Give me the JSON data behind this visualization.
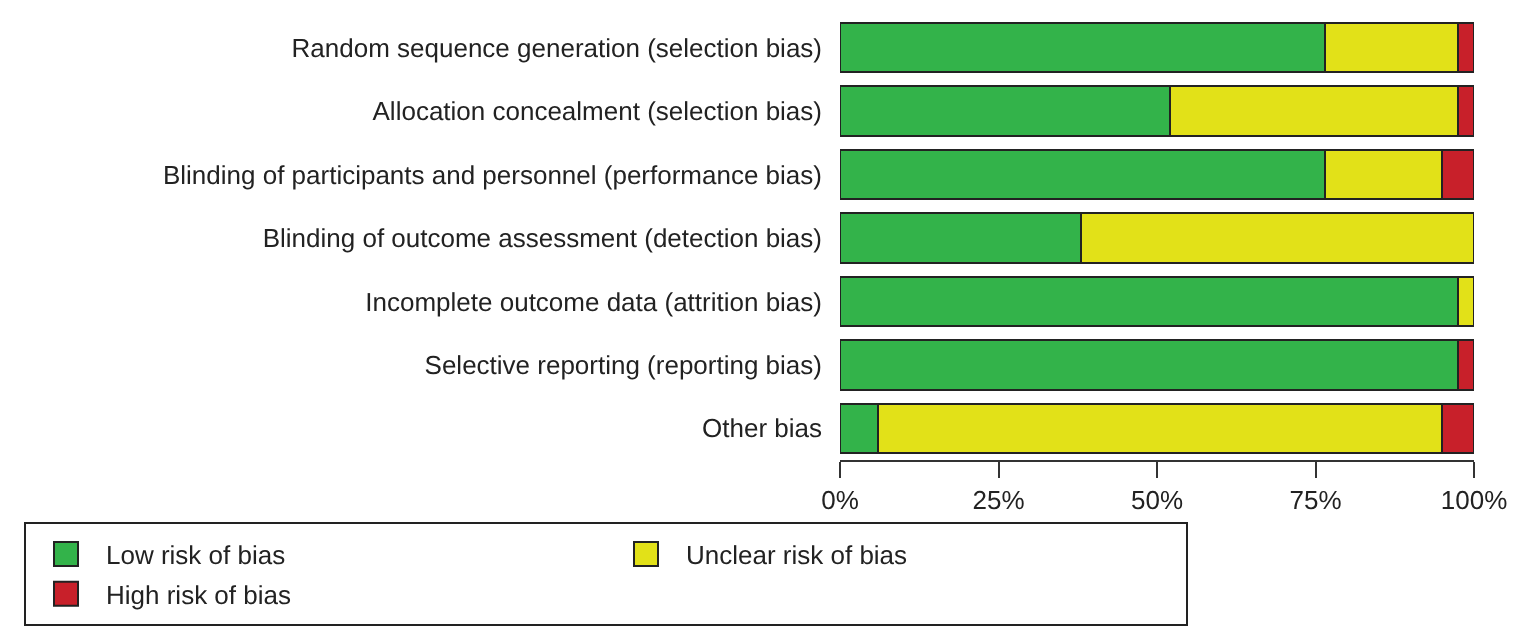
{
  "chart_data": {
    "type": "bar",
    "orientation": "horizontal",
    "stacked": true,
    "categories": [
      "Random sequence generation (selection bias)",
      "Allocation concealment (selection bias)",
      "Blinding of participants and personnel (performance bias)",
      "Blinding of outcome assessment (detection bias)",
      "Incomplete outcome data (attrition bias)",
      "Selective reporting (reporting bias)",
      "Other bias"
    ],
    "series": [
      {
        "name": "Low risk of bias",
        "color": "#33b34a",
        "values": [
          76.5,
          52,
          76.5,
          38,
          97.5,
          97.5,
          6
        ]
      },
      {
        "name": "Unclear risk of bias",
        "color": "#e2e118",
        "values": [
          21,
          45.5,
          18.5,
          62,
          2.5,
          0,
          89
        ]
      },
      {
        "name": "High risk of bias",
        "color": "#c8202a",
        "values": [
          2.5,
          2.5,
          5,
          0,
          0,
          2.5,
          5
        ]
      }
    ],
    "xlim": [
      0,
      100
    ],
    "xticks": [
      {
        "value": 0,
        "label": "0%"
      },
      {
        "value": 25,
        "label": "25%"
      },
      {
        "value": 50,
        "label": "50%"
      },
      {
        "value": 75,
        "label": "75%"
      },
      {
        "value": 100,
        "label": "100%"
      }
    ],
    "grid": false,
    "legend": "bottom"
  }
}
